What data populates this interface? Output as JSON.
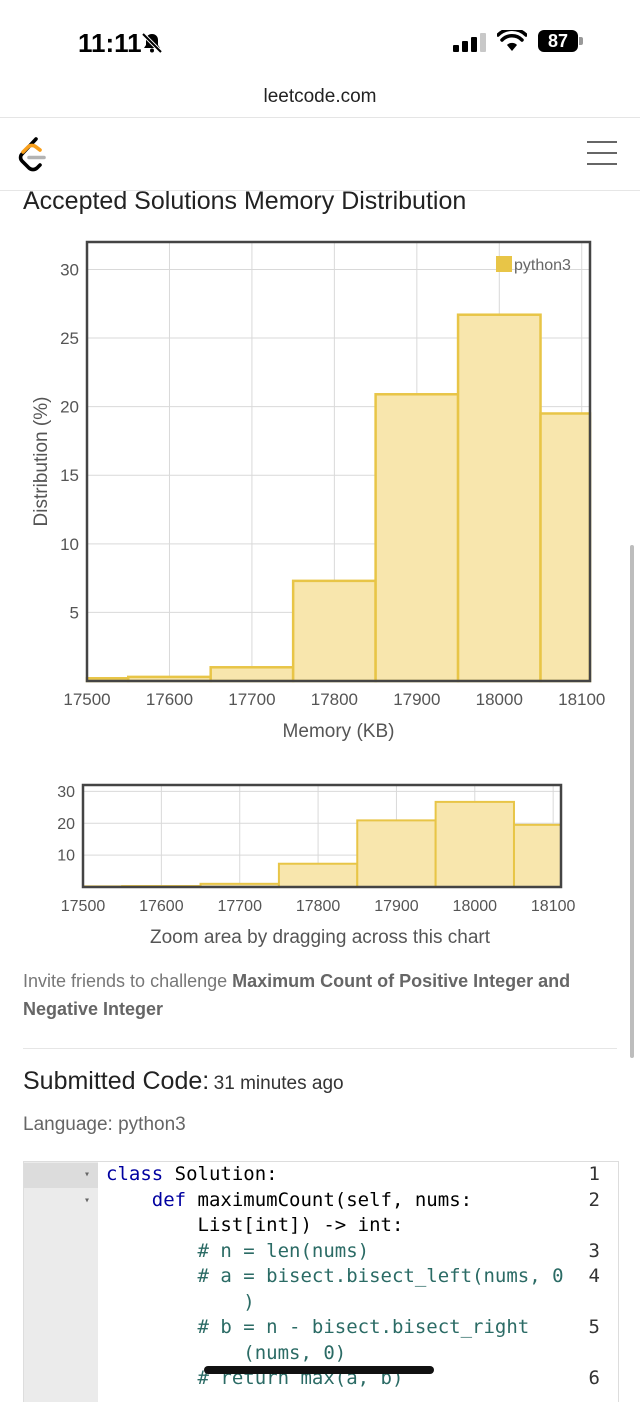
{
  "status_bar": {
    "time": "11:11",
    "battery": "87"
  },
  "browser": {
    "url": "leetcode.com"
  },
  "page": {
    "title": "Accepted Solutions Memory Distribution",
    "zoom_hint": "Zoom area by dragging across this chart",
    "invite_prefix": "Invite friends to challenge ",
    "problem_name": "Maximum Count of Positive Integer and Negative Integer",
    "submitted_label": "Submitted Code:",
    "submitted_time": "31 minutes ago",
    "language_label": "Language: python3"
  },
  "chart_data": [
    {
      "type": "bar",
      "title": "",
      "xlabel": "Memory (KB)",
      "ylabel": "Distribution (%)",
      "x_ticks": [
        17500,
        17600,
        17700,
        17800,
        17900,
        18000,
        18100
      ],
      "y_ticks": [
        5,
        10,
        15,
        20,
        25,
        30
      ],
      "xlim": [
        17500,
        18110
      ],
      "ylim": [
        0,
        32
      ],
      "bin_width": 100,
      "legend_position": "top-right",
      "grid": true,
      "series": [
        {
          "name": "python3",
          "color": "#e8c547",
          "bins": [
            17450,
            17550,
            17650,
            17750,
            17850,
            17950,
            18050
          ],
          "values": [
            0.2,
            0.3,
            1.0,
            7.3,
            20.9,
            26.7,
            19.5
          ]
        }
      ]
    },
    {
      "type": "bar",
      "title": "",
      "xlabel": "",
      "ylabel": "",
      "x_ticks": [
        17500,
        17600,
        17700,
        17800,
        17900,
        18000,
        18100
      ],
      "y_ticks": [
        10,
        20,
        30
      ],
      "xlim": [
        17500,
        18110
      ],
      "ylim": [
        0,
        32
      ],
      "bin_width": 100,
      "grid": true,
      "series": [
        {
          "color": "#e8c547",
          "bins": [
            17450,
            17550,
            17650,
            17750,
            17850,
            17950,
            18050
          ],
          "values": [
            0.2,
            0.3,
            1.0,
            7.3,
            20.9,
            26.7,
            19.5
          ]
        }
      ]
    }
  ],
  "code": {
    "lines": [
      {
        "num": "1",
        "fold": true,
        "rows": [
          [
            {
              "t": "class",
              "c": "kw"
            },
            {
              "t": " Solution:"
            }
          ]
        ]
      },
      {
        "num": "2",
        "fold": true,
        "rows": [
          [
            {
              "t": "    "
            },
            {
              "t": "def",
              "c": "kw"
            },
            {
              "t": " maximumCount(self, nums:"
            }
          ],
          [
            {
              "t": "        List[int]) -> int:"
            }
          ]
        ]
      },
      {
        "num": "3",
        "rows": [
          [
            {
              "t": "        # n = len(nums)",
              "c": "cm"
            }
          ]
        ]
      },
      {
        "num": "4",
        "rows": [
          [
            {
              "t": "        # a = bisect.bisect_left(nums, 0",
              "c": "cm"
            }
          ],
          [
            {
              "t": "            )",
              "c": "cm"
            }
          ]
        ]
      },
      {
        "num": "5",
        "rows": [
          [
            {
              "t": "        # b = n - bisect.bisect_right",
              "c": "cm"
            }
          ],
          [
            {
              "t": "            (nums, 0)",
              "c": "cm"
            }
          ]
        ]
      },
      {
        "num": "6",
        "rows": [
          [
            {
              "t": "        # return max(a, b)",
              "c": "cm"
            }
          ]
        ]
      }
    ]
  }
}
